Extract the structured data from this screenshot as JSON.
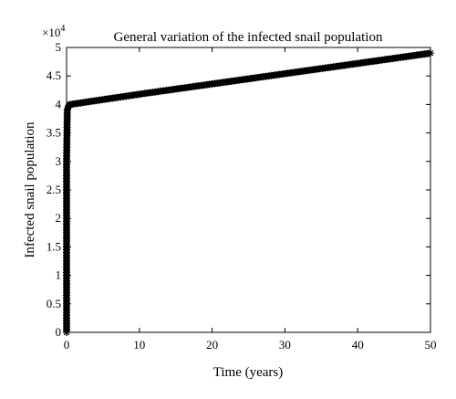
{
  "chart_data": {
    "type": "line",
    "title": "General variation of the infected snail population",
    "xlabel": "Time (years)",
    "ylabel": "Infected snail population",
    "xlim": [
      0,
      50
    ],
    "ylim": [
      0,
      5
    ],
    "y_multiplier_base": "×10",
    "y_multiplier_exponent": "4",
    "x_ticks": [
      0,
      10,
      20,
      30,
      40,
      50
    ],
    "x_tick_labels": [
      "0",
      "10",
      "20",
      "30",
      "40",
      "50"
    ],
    "y_ticks": [
      0,
      0.5,
      1,
      1.5,
      2,
      2.5,
      3,
      3.5,
      4,
      4.5,
      5
    ],
    "y_tick_labels": [
      "0",
      "0.5",
      "1",
      "1.5",
      "2",
      "2.5",
      "3",
      "3.5",
      "4",
      "4.5",
      "5"
    ],
    "grid": false,
    "series": [
      {
        "color": "#000000",
        "marker": "star",
        "x": [
          0,
          0,
          0,
          0,
          0,
          0,
          0,
          0,
          0,
          0,
          0.05,
          0.1,
          0.3,
          0.5,
          10,
          20,
          30,
          40,
          50
        ],
        "y": [
          0,
          0.2,
          0.4,
          0.6,
          0.8,
          1.0,
          1.5,
          2.0,
          2.5,
          3.0,
          3.5,
          3.9,
          3.98,
          4.0,
          4.18,
          4.36,
          4.54,
          4.72,
          4.9
        ]
      }
    ]
  }
}
